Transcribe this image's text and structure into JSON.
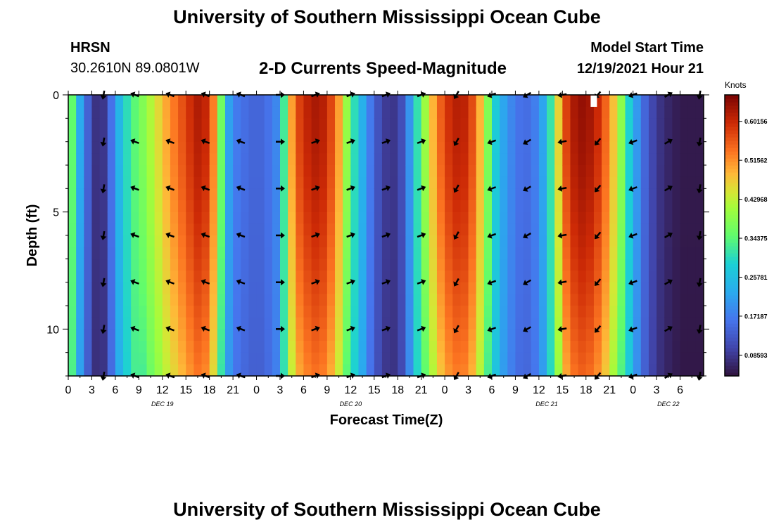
{
  "page": {
    "title": "University of Southern Mississippi Ocean Cube",
    "title_bottom": "University of Southern Mississippi Ocean Cube",
    "station": "HRSN",
    "coords": "30.2610N  89.0801W",
    "plot_title": "2-D Currents Speed-Magnitude",
    "model_start_label": "Model Start Time",
    "model_start_value": "12/19/2021 Hour 21"
  },
  "chart_data": {
    "type": "heatmap",
    "title": "2-D Currents Speed-Magnitude",
    "xlabel": "Forecast Time(Z)",
    "ylabel": "Depth (ft)",
    "colorbar_label": "Knots",
    "colorbar_ticks": [
      "0.60156",
      "0.51562",
      "0.42968",
      "0.34375",
      "0.25781",
      "0.17187",
      "0.08593"
    ],
    "colorbar_values": [
      0.60156,
      0.51562,
      0.42968,
      0.34375,
      0.25781,
      0.17187,
      0.08593
    ],
    "colorbar_range": [
      0.04,
      0.66
    ],
    "ylim": [
      0,
      12
    ],
    "y_ticks": [
      "0",
      "5",
      "10"
    ],
    "y_tick_values": [
      0,
      5,
      10
    ],
    "xlim": [
      0,
      81
    ],
    "x_tick_labels": [
      "0",
      "3",
      "6",
      "9",
      "12",
      "15",
      "18",
      "21",
      "0",
      "3",
      "6",
      "9",
      "12",
      "15",
      "18",
      "21",
      "0",
      "3",
      "6",
      "9",
      "12",
      "15",
      "18",
      "21",
      "0",
      "3",
      "6"
    ],
    "day_labels": [
      {
        "text": "DEC 19",
        "hours": 12
      },
      {
        "text": "DEC 20",
        "hours": 36
      },
      {
        "text": "DEC 21",
        "hours": 61
      },
      {
        "text": "DEC 22",
        "hours": 76.5
      }
    ],
    "speed_keyframes": [
      {
        "h": 0,
        "s": 0.43
      },
      {
        "h": 1,
        "s": 0.27
      },
      {
        "h": 2,
        "s": 0.18
      },
      {
        "h": 3,
        "s": 0.1
      },
      {
        "h": 4,
        "s": 0.06
      },
      {
        "h": 5,
        "s": 0.11
      },
      {
        "h": 6,
        "s": 0.21
      },
      {
        "h": 7,
        "s": 0.28
      },
      {
        "h": 8,
        "s": 0.33
      },
      {
        "h": 9,
        "s": 0.36
      },
      {
        "h": 10,
        "s": 0.4
      },
      {
        "h": 11,
        "s": 0.44
      },
      {
        "h": 12,
        "s": 0.48
      },
      {
        "h": 13,
        "s": 0.52
      },
      {
        "h": 14,
        "s": 0.55
      },
      {
        "h": 15,
        "s": 0.58
      },
      {
        "h": 16,
        "s": 0.61
      },
      {
        "h": 17,
        "s": 0.63
      },
      {
        "h": 18,
        "s": 0.58
      },
      {
        "h": 19,
        "s": 0.48
      },
      {
        "h": 20,
        "s": 0.25
      },
      {
        "h": 21,
        "s": 0.18
      },
      {
        "h": 22,
        "s": 0.16
      },
      {
        "h": 23,
        "s": 0.15
      },
      {
        "h": 24,
        "s": 0.14
      },
      {
        "h": 25,
        "s": 0.15
      },
      {
        "h": 26,
        "s": 0.17
      },
      {
        "h": 27,
        "s": 0.2
      },
      {
        "h": 28,
        "s": 0.45
      },
      {
        "h": 29,
        "s": 0.56
      },
      {
        "h": 30,
        "s": 0.6
      },
      {
        "h": 31,
        "s": 0.62
      },
      {
        "h": 32,
        "s": 0.63
      },
      {
        "h": 33,
        "s": 0.6
      },
      {
        "h": 34,
        "s": 0.55
      },
      {
        "h": 35,
        "s": 0.46
      },
      {
        "h": 36,
        "s": 0.34
      },
      {
        "h": 37,
        "s": 0.27
      },
      {
        "h": 38,
        "s": 0.2
      },
      {
        "h": 39,
        "s": 0.14
      },
      {
        "h": 40,
        "s": 0.1
      },
      {
        "h": 41,
        "s": 0.08
      },
      {
        "h": 42,
        "s": 0.09
      },
      {
        "h": 43,
        "s": 0.14
      },
      {
        "h": 44,
        "s": 0.26
      },
      {
        "h": 45,
        "s": 0.36
      },
      {
        "h": 46,
        "s": 0.45
      },
      {
        "h": 47,
        "s": 0.53
      },
      {
        "h": 48,
        "s": 0.58
      },
      {
        "h": 49,
        "s": 0.61
      },
      {
        "h": 50,
        "s": 0.62
      },
      {
        "h": 51,
        "s": 0.6
      },
      {
        "h": 52,
        "s": 0.54
      },
      {
        "h": 53,
        "s": 0.44
      },
      {
        "h": 54,
        "s": 0.32
      },
      {
        "h": 55,
        "s": 0.24
      },
      {
        "h": 56,
        "s": 0.2
      },
      {
        "h": 57,
        "s": 0.17
      },
      {
        "h": 58,
        "s": 0.15
      },
      {
        "h": 59,
        "s": 0.16
      },
      {
        "h": 60,
        "s": 0.19
      },
      {
        "h": 61,
        "s": 0.25
      },
      {
        "h": 62,
        "s": 0.38
      },
      {
        "h": 63,
        "s": 0.55
      },
      {
        "h": 64,
        "s": 0.61
      },
      {
        "h": 65,
        "s": 0.64
      },
      {
        "h": 66,
        "s": 0.64
      },
      {
        "h": 67,
        "s": 0.62
      },
      {
        "h": 68,
        "s": 0.58
      },
      {
        "h": 69,
        "s": 0.52
      },
      {
        "h": 70,
        "s": 0.44
      },
      {
        "h": 71,
        "s": 0.34
      },
      {
        "h": 72,
        "s": 0.24
      },
      {
        "h": 73,
        "s": 0.17
      },
      {
        "h": 74,
        "s": 0.12
      },
      {
        "h": 75,
        "s": 0.09
      },
      {
        "h": 76,
        "s": 0.07
      },
      {
        "h": 77,
        "s": 0.06
      },
      {
        "h": 78,
        "s": 0.05
      },
      {
        "h": 79,
        "s": 0.05
      },
      {
        "h": 80,
        "s": 0.05
      },
      {
        "h": 81,
        "s": 0.05
      }
    ],
    "arrow_depths": [
      0,
      2,
      4,
      6,
      8,
      10,
      12
    ],
    "arrows": [
      {
        "h": 4.5,
        "angle": 100
      },
      {
        "h": 8.5,
        "angle": 200
      },
      {
        "h": 13,
        "angle": 200
      },
      {
        "h": 17.5,
        "angle": 200
      },
      {
        "h": 22,
        "angle": 200
      },
      {
        "h": 27,
        "angle": 0
      },
      {
        "h": 31.5,
        "angle": 340
      },
      {
        "h": 36,
        "angle": 340
      },
      {
        "h": 40.5,
        "angle": 340
      },
      {
        "h": 45,
        "angle": 340
      },
      {
        "h": 49.5,
        "angle": 120
      },
      {
        "h": 54,
        "angle": 160
      },
      {
        "h": 58.5,
        "angle": 150
      },
      {
        "h": 63,
        "angle": 170
      },
      {
        "h": 67.5,
        "angle": 130
      },
      {
        "h": 72,
        "angle": 160
      },
      {
        "h": 76.5,
        "angle": 330
      },
      {
        "h": 80.5,
        "angle": 100
      }
    ],
    "marker": {
      "h": 67,
      "depth": 0.3
    }
  }
}
